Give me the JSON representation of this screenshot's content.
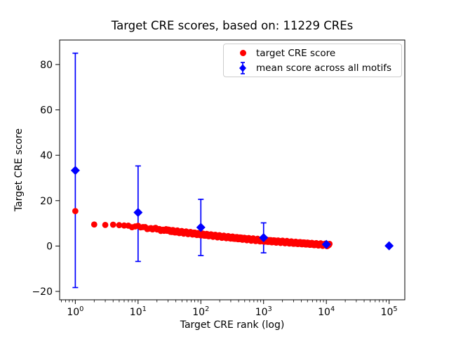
{
  "figure": {
    "title": "Target CRE scores, based on: 11229 CREs",
    "xlabel": "Target CRE rank (log)",
    "ylabel": "Target CRE score"
  },
  "chart_data": {
    "type": "scatter",
    "title": "Target CRE scores, based on: 11229 CREs",
    "xlabel": "Target CRE rank (log)",
    "ylabel": "Target CRE score",
    "x_scale": "log",
    "xlim_log10": [
      -0.25,
      5.25
    ],
    "ylim": [
      -23.7,
      90.8
    ],
    "x_tick_exponents": [
      0,
      1,
      2,
      3,
      4,
      5
    ],
    "y_ticks": [
      -20,
      0,
      20,
      40,
      60,
      80
    ],
    "grid": false,
    "legend_position": "upper right",
    "n_cres": 11229,
    "series": [
      {
        "name": "target CRE score",
        "type": "scatter-dense",
        "marker": "circle",
        "color": "#ff0000",
        "n_points_depicted": 11229,
        "anchors": {
          "rank": [
            1,
            2,
            3,
            4,
            5,
            7,
            10,
            15,
            20,
            30,
            50,
            70,
            100,
            150,
            200,
            300,
            500,
            700,
            1000,
            1500,
            2000,
            3000,
            5000,
            7000,
            10000,
            11229
          ],
          "score": [
            15.4,
            9.5,
            9.3,
            9.4,
            9.2,
            8.9,
            8.4,
            7.9,
            7.4,
            6.8,
            6.1,
            5.7,
            5.2,
            4.7,
            4.3,
            3.8,
            3.2,
            2.8,
            2.4,
            2.0,
            1.8,
            1.4,
            1.0,
            0.7,
            0.45,
            0.4
          ]
        }
      },
      {
        "name": "mean score across all motifs",
        "type": "scatter-errorbar",
        "marker": "diamond",
        "color": "#0000ff",
        "rank": [
          1,
          10,
          100,
          1000,
          10000,
          100000
        ],
        "mean": [
          33.3,
          14.8,
          8.2,
          3.7,
          0.7,
          0.1
        ],
        "err_low": [
          -18.3,
          -6.8,
          -4.2,
          -3.0,
          -0.5,
          -0.3
        ],
        "err_high": [
          85.0,
          35.3,
          20.6,
          10.2,
          1.9,
          0.5
        ]
      }
    ]
  }
}
